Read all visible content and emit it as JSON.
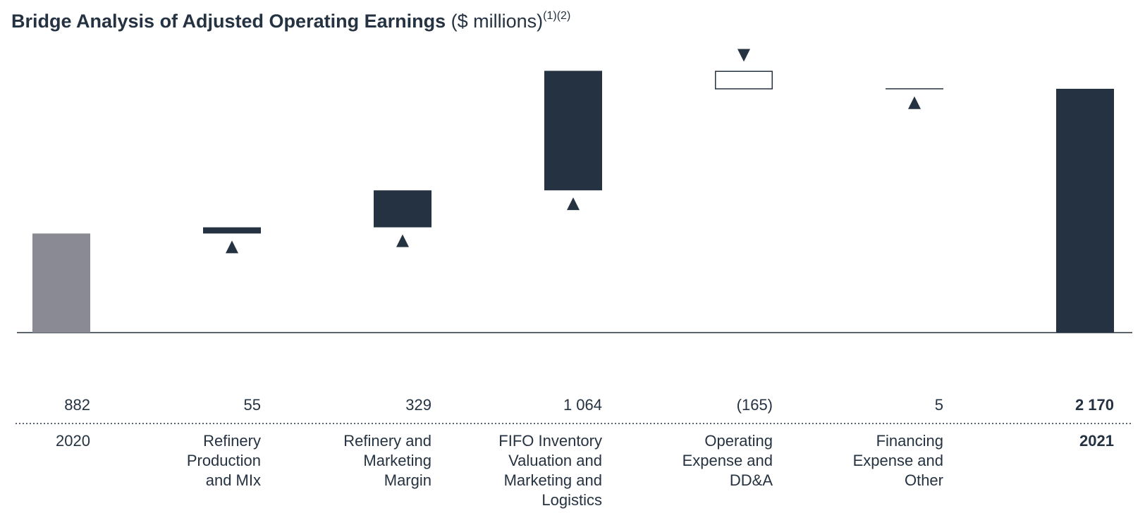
{
  "title": {
    "main": "Bridge Analysis of Adjusted Operating Earnings",
    "unit": "($ millions)",
    "notes": "(1)(2)"
  },
  "colors": {
    "dark": "#253241",
    "start_bar": "#8a8a94",
    "text": "#253241"
  },
  "chart_data": {
    "type": "bar",
    "subtype": "waterfall",
    "title": "Bridge Analysis of Adjusted Operating Earnings",
    "unit": "$ millions",
    "categories": [
      [
        "2020"
      ],
      [
        "Refinery",
        "Production",
        "and MIx"
      ],
      [
        "Refinery and",
        "Marketing",
        "Margin"
      ],
      [
        "FIFO Inventory",
        "Valuation and",
        "Marketing and",
        "Logistics"
      ],
      [
        "Operating",
        "Expense and",
        "DD&A"
      ],
      [
        "Financing",
        "Expense and",
        "Other"
      ],
      [
        "2021"
      ]
    ],
    "values": [
      882,
      55,
      329,
      1064,
      -165,
      5,
      2170
    ],
    "value_labels": [
      "882",
      "55",
      "329",
      "1 064",
      "(165)",
      "5",
      "2 170"
    ],
    "kinds": [
      "total",
      "change",
      "change",
      "change",
      "change",
      "change",
      "total"
    ],
    "bold": [
      false,
      false,
      false,
      false,
      false,
      false,
      true
    ],
    "ylim": [
      0,
      2400
    ],
    "grid": false
  }
}
